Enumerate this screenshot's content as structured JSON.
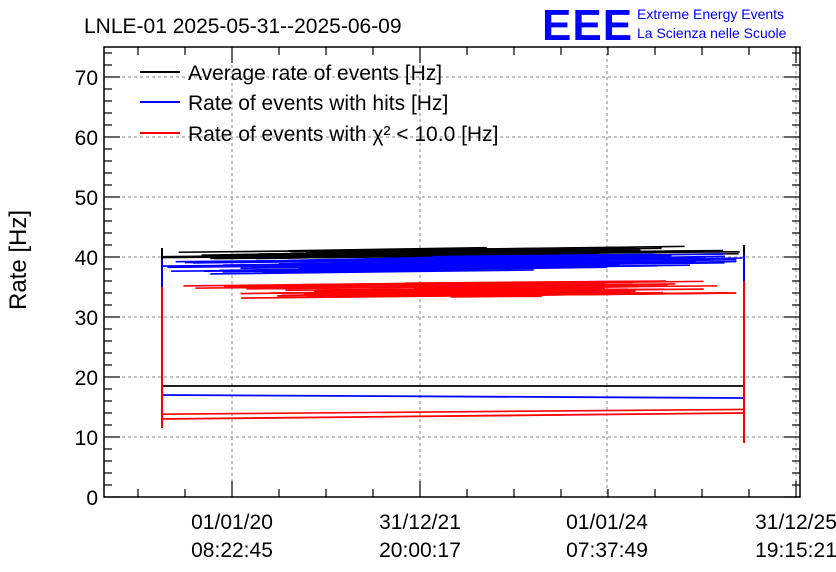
{
  "chart_data": {
    "type": "line",
    "title": "LNLE-01 2025-05-31--2025-06-09",
    "ylabel": "Rate [Hz]",
    "xlabel": "",
    "ylim": [
      0,
      75
    ],
    "yticks": [
      0,
      10,
      20,
      30,
      40,
      50,
      60,
      70
    ],
    "grid": true,
    "legend_position": "top-left",
    "x_tick_labels": [
      {
        "date": "01/01/20",
        "time": "08:22:45"
      },
      {
        "date": "31/12/21",
        "time": "20:00:17"
      },
      {
        "date": "01/01/24",
        "time": "07:37:49"
      },
      {
        "date": "31/12/25",
        "time": "19:15:21"
      }
    ],
    "legend": [
      {
        "text": "Average rate of events [Hz]",
        "color": "#000000"
      },
      {
        "text": "Rate of events with hits [Hz]",
        "color": "#0000ff"
      },
      {
        "text": "Rate of events with χ² < 10.0 [Hz]",
        "color": "#ff0000"
      }
    ],
    "series": [
      {
        "color": "#000000",
        "values": [
          [
            0,
            40.5
          ],
          [
            0.1,
            40.2
          ],
          [
            0.3,
            40.6
          ],
          [
            0.5,
            40.9
          ],
          [
            0.7,
            41.1
          ],
          [
            0.9,
            41.3
          ],
          [
            1.0,
            41.0
          ],
          [
            0,
            18.5
          ],
          [
            1.0,
            18.5
          ]
        ]
      },
      {
        "color": "#0000ff",
        "values": [
          [
            0,
            38.5
          ],
          [
            0.2,
            38.2
          ],
          [
            0.4,
            38.8
          ],
          [
            0.6,
            39.0
          ],
          [
            0.8,
            39.2
          ],
          [
            1.0,
            39.5
          ],
          [
            0,
            17.0
          ],
          [
            1.0,
            16.5
          ]
        ]
      },
      {
        "color": "#ff0000",
        "values": [
          [
            0,
            34.0
          ],
          [
            0.2,
            34.2
          ],
          [
            0.4,
            34.5
          ],
          [
            0.6,
            34.6
          ],
          [
            0.8,
            34.8
          ],
          [
            1.0,
            35.0
          ],
          [
            0,
            13.0
          ],
          [
            1.0,
            14.0
          ]
        ]
      }
    ]
  },
  "logo": {
    "big": "EEE",
    "line1": "Extreme Energy Events",
    "line2": "La Scienza nelle Scuole"
  },
  "colors": {
    "black": "#000000",
    "blue": "#0000ff",
    "red": "#ff0000",
    "grid": "#888888"
  }
}
